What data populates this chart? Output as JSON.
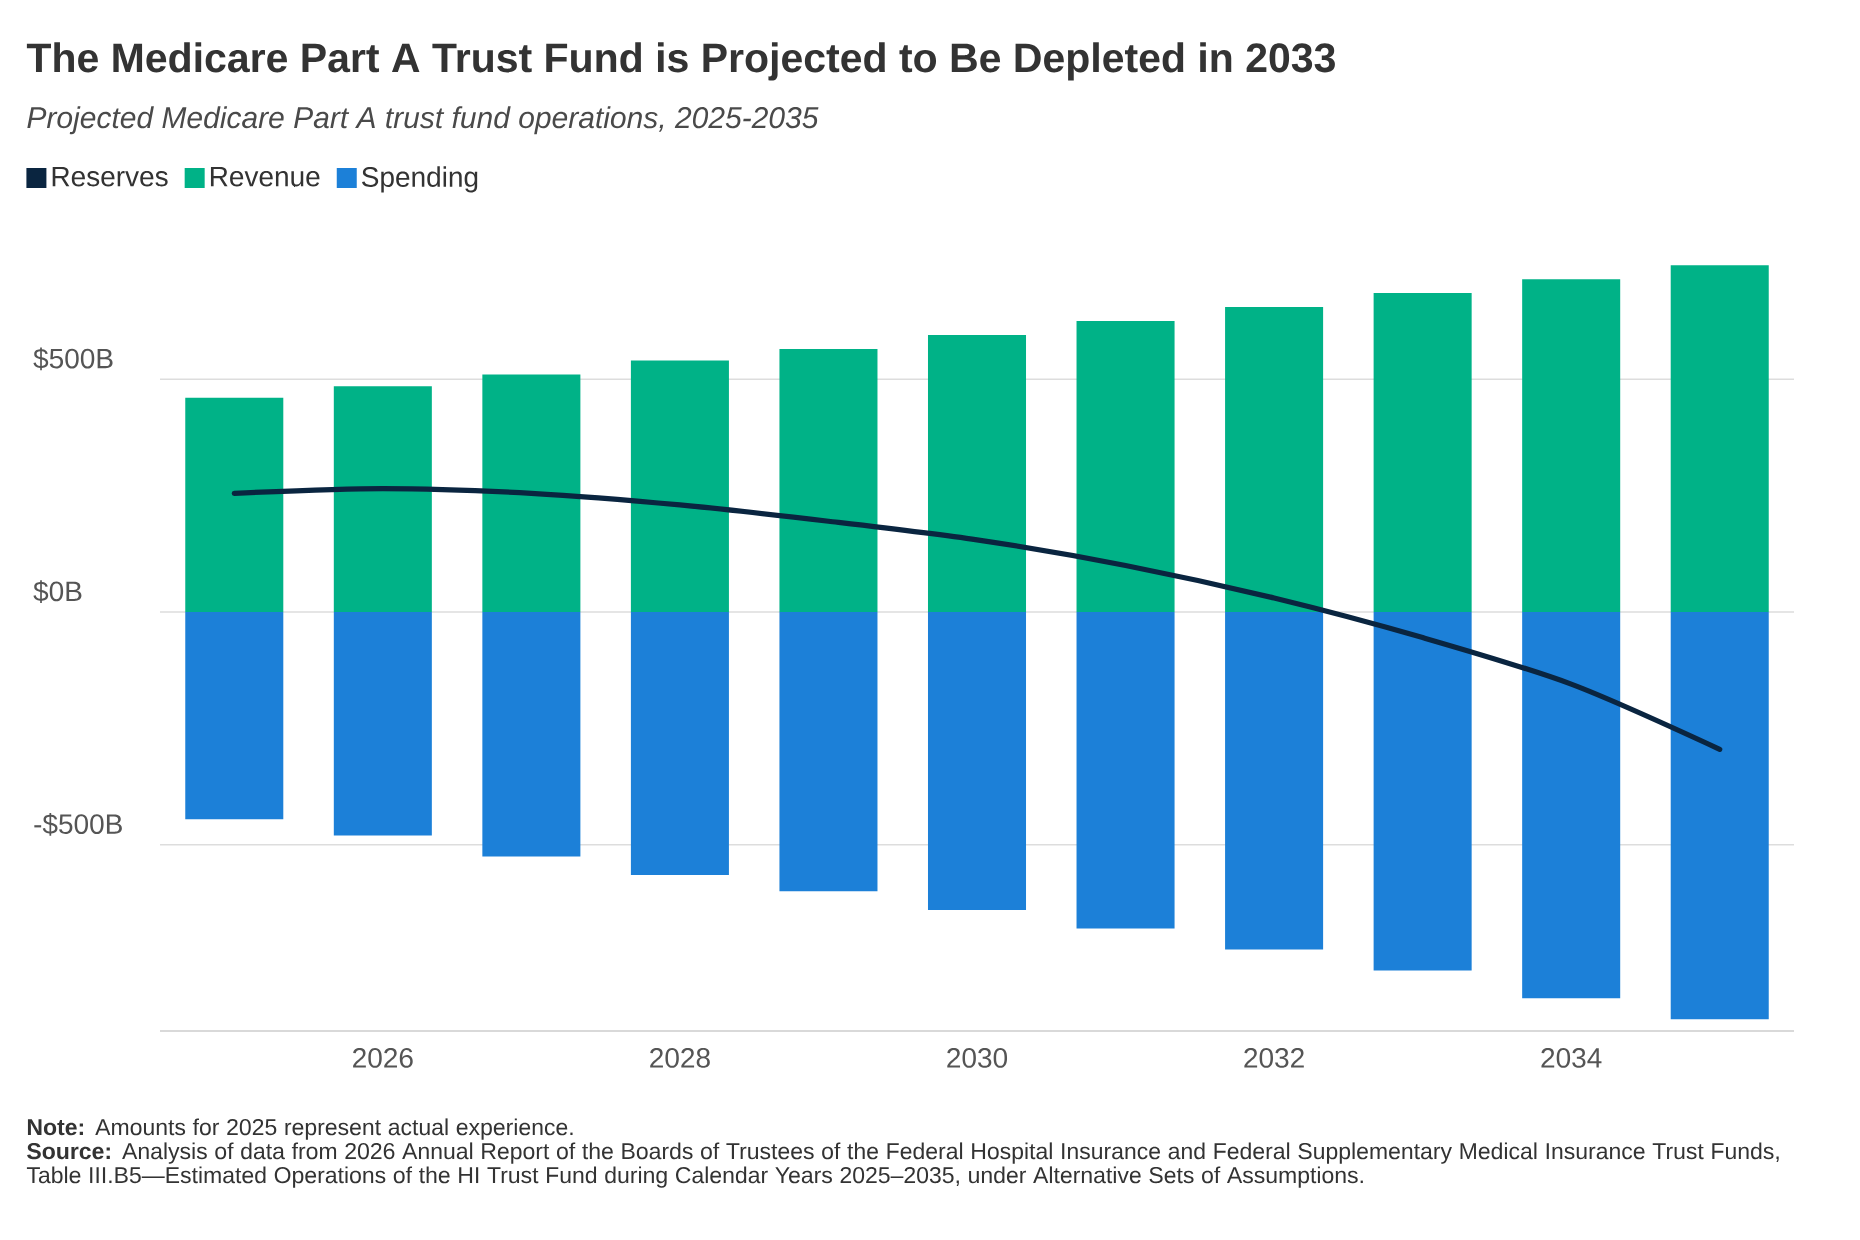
{
  "chart_data": {
    "type": "bar",
    "title": "The Medicare Part A Trust Fund is Projected to Be Depleted in 2033",
    "subtitle": "Projected Medicare Part A trust fund operations, 2025-2035",
    "x": [
      2025,
      2026,
      2027,
      2028,
      2029,
      2030,
      2031,
      2032,
      2033,
      2034,
      2035
    ],
    "xlim": [
      2024.5,
      2035.5
    ],
    "xticks": [
      2026,
      2028,
      2030,
      2032,
      2034
    ],
    "ylim": [
      -900,
      745
    ],
    "yticks": [
      {
        "value": -500,
        "label": "-$500B"
      },
      {
        "value": 0,
        "label": "$0B"
      },
      {
        "value": 500,
        "label": "$500B"
      }
    ],
    "stacked": true,
    "grid": "y",
    "legend": "top left",
    "line_style": "solid",
    "series": [
      {
        "name": "Reserves",
        "type": "line",
        "color": "#0a2540",
        "values": [
          255,
          265,
          255,
          230,
          195,
          155,
          100,
          30,
          -55,
          -155,
          -295
        ]
      },
      {
        "name": "Revenue",
        "color": "#00b287",
        "values": [
          460,
          485,
          510,
          540,
          565,
          595,
          625,
          655,
          685,
          715,
          745
        ]
      },
      {
        "name": "Spending",
        "color": "#1c80d8",
        "values": [
          -445,
          -480,
          -525,
          -565,
          -600,
          -640,
          -680,
          -725,
          -770,
          -830,
          -875
        ]
      }
    ],
    "annotations": [
      "**Note:** Amounts for 2025 represent actual experience.",
      "**Source:** Analysis of data from 2026 Annual Report of the Boards of Trustees of the Federal Hospital Insurance and Federal Supplementary Medical Insurance Trust Funds, Table III.B5—Estimated Operations of the HI Trust Fund during Calendar Years 2025–2035, under Alternative Sets of Assumptions."
    ]
  }
}
